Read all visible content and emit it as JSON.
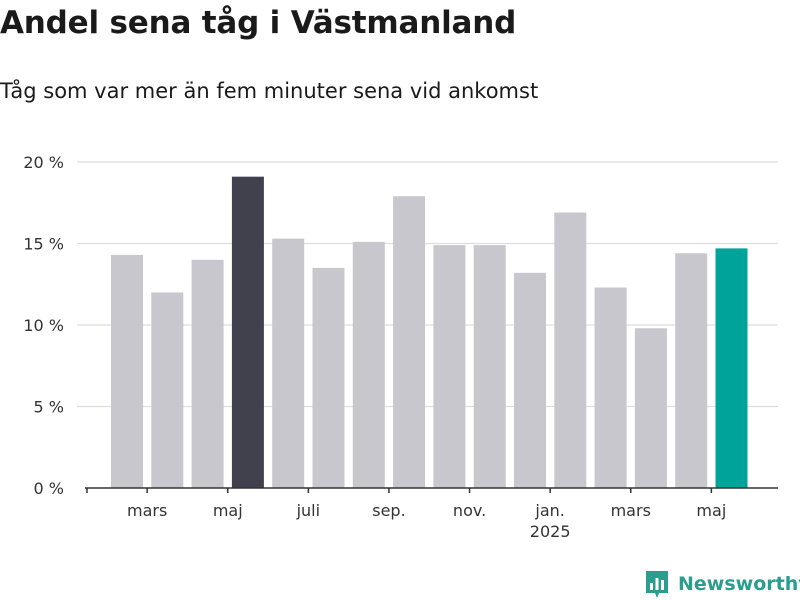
{
  "title": "Andel sena tåg i Västmanland",
  "subtitle": "Tåg som var mer än fem minuter sena vid ankomst",
  "brand": {
    "name": "Newsworthy",
    "color": "#2a9d8f"
  },
  "colors": {
    "default": "#c8c7cd",
    "highlight": "#41414e",
    "latest": "#00a39a",
    "grid": "#dddddd",
    "axis": "#333333"
  },
  "chart_data": {
    "type": "bar",
    "categories": [
      "2024-02",
      "2024-03",
      "2024-04",
      "2024-05",
      "2024-06",
      "2024-07",
      "2024-08",
      "2024-09",
      "2024-10",
      "2024-11",
      "2024-12",
      "2025-01",
      "2025-02",
      "2025-03",
      "2025-04",
      "2025-05"
    ],
    "values": [
      14.3,
      12.0,
      14.0,
      19.1,
      15.3,
      13.5,
      15.1,
      17.9,
      14.9,
      14.9,
      13.2,
      16.9,
      12.3,
      9.8,
      14.4,
      14.7
    ],
    "highlight_index": 3,
    "latest_index": 15,
    "ylim": [
      0,
      20
    ],
    "yticks": [
      0,
      5,
      10,
      15,
      20
    ],
    "ytick_labels": [
      "0 %",
      "5 %",
      "10 %",
      "15 %",
      "20 %"
    ],
    "xtick_labels": [
      {
        "index": 1,
        "label": "mars"
      },
      {
        "index": 3,
        "label": "maj"
      },
      {
        "index": 5,
        "label": "juli"
      },
      {
        "index": 7,
        "label": "sep."
      },
      {
        "index": 9,
        "label": "nov."
      },
      {
        "index": 11,
        "label": "jan.",
        "sublabel": "2025"
      },
      {
        "index": 13,
        "label": "mars"
      },
      {
        "index": 15,
        "label": "maj"
      }
    ],
    "grid": true,
    "xlabel": "",
    "ylabel": ""
  }
}
